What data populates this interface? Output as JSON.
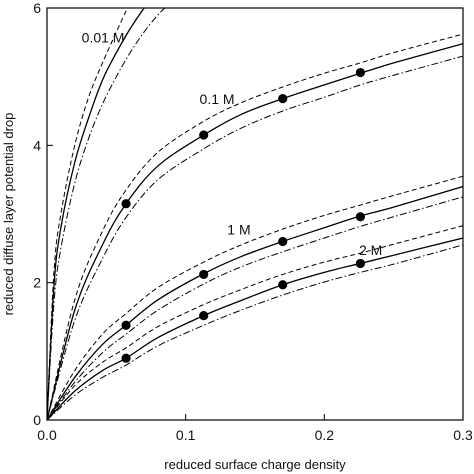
{
  "chart_data": {
    "type": "line",
    "title": "",
    "xlabel": "reduced surface charge density",
    "ylabel": "reduced diffuse layer potential drop",
    "xlim": [
      0.0,
      0.3
    ],
    "ylim": [
      0,
      6
    ],
    "x_ticks": [
      "0.0",
      "0.1",
      "0.2",
      "0.3"
    ],
    "y_ticks": [
      "0",
      "2",
      "4",
      "6"
    ],
    "grid": false,
    "legend": "none",
    "curve_labels": [
      {
        "text": "0.01 M",
        "x": 0.025,
        "y": 5.5
      },
      {
        "text": "0.1 M",
        "x": 0.11,
        "y": 4.6
      },
      {
        "text": "1 M",
        "x": 0.13,
        "y": 2.7
      },
      {
        "text": "2 M",
        "x": 0.225,
        "y": 2.4
      }
    ],
    "groups": [
      {
        "label": "0.01 M",
        "solid": [
          [
            0,
            0
          ],
          [
            0.005,
            1.95
          ],
          [
            0.01,
            2.8
          ],
          [
            0.02,
            3.75
          ],
          [
            0.03,
            4.4
          ],
          [
            0.04,
            4.95
          ],
          [
            0.05,
            5.35
          ],
          [
            0.06,
            5.7
          ],
          [
            0.07,
            6.0
          ]
        ],
        "dashed": [
          [
            0,
            0
          ],
          [
            0.005,
            2.15
          ],
          [
            0.01,
            3.0
          ],
          [
            0.02,
            4.0
          ],
          [
            0.03,
            4.7
          ],
          [
            0.04,
            5.2
          ],
          [
            0.05,
            5.65
          ],
          [
            0.058,
            6.0
          ]
        ],
        "dashdot": [
          [
            0,
            0
          ],
          [
            0.005,
            1.7
          ],
          [
            0.01,
            2.5
          ],
          [
            0.02,
            3.45
          ],
          [
            0.03,
            4.1
          ],
          [
            0.04,
            4.6
          ],
          [
            0.05,
            5.0
          ],
          [
            0.06,
            5.35
          ],
          [
            0.07,
            5.65
          ],
          [
            0.08,
            5.9
          ],
          [
            0.085,
            6.0
          ]
        ],
        "points": []
      },
      {
        "label": "0.1 M",
        "solid": [
          [
            0,
            0
          ],
          [
            0.02,
            1.6
          ],
          [
            0.04,
            2.55
          ],
          [
            0.057,
            3.15
          ],
          [
            0.08,
            3.7
          ],
          [
            0.113,
            4.15
          ],
          [
            0.14,
            4.45
          ],
          [
            0.17,
            4.68
          ],
          [
            0.2,
            4.88
          ],
          [
            0.226,
            5.05
          ],
          [
            0.25,
            5.2
          ],
          [
            0.3,
            5.48
          ]
        ],
        "dashed": [
          [
            0,
            0
          ],
          [
            0.02,
            1.75
          ],
          [
            0.04,
            2.75
          ],
          [
            0.057,
            3.35
          ],
          [
            0.08,
            3.9
          ],
          [
            0.113,
            4.35
          ],
          [
            0.14,
            4.62
          ],
          [
            0.17,
            4.85
          ],
          [
            0.2,
            5.05
          ],
          [
            0.226,
            5.2
          ],
          [
            0.25,
            5.35
          ],
          [
            0.3,
            5.62
          ]
        ],
        "dashdot": [
          [
            0,
            0
          ],
          [
            0.02,
            1.45
          ],
          [
            0.04,
            2.35
          ],
          [
            0.057,
            2.95
          ],
          [
            0.08,
            3.5
          ],
          [
            0.113,
            3.95
          ],
          [
            0.14,
            4.25
          ],
          [
            0.17,
            4.5
          ],
          [
            0.2,
            4.7
          ],
          [
            0.226,
            4.88
          ],
          [
            0.25,
            5.02
          ],
          [
            0.3,
            5.3
          ]
        ],
        "points": [
          [
            0.057,
            3.15
          ],
          [
            0.113,
            4.15
          ],
          [
            0.17,
            4.68
          ],
          [
            0.226,
            5.06
          ]
        ]
      },
      {
        "label": "1 M",
        "solid": [
          [
            0,
            0
          ],
          [
            0.02,
            0.62
          ],
          [
            0.04,
            1.1
          ],
          [
            0.057,
            1.38
          ],
          [
            0.08,
            1.75
          ],
          [
            0.113,
            2.13
          ],
          [
            0.14,
            2.38
          ],
          [
            0.17,
            2.6
          ],
          [
            0.2,
            2.8
          ],
          [
            0.226,
            2.97
          ],
          [
            0.25,
            3.1
          ],
          [
            0.3,
            3.4
          ]
        ],
        "dashed": [
          [
            0,
            0
          ],
          [
            0.02,
            0.72
          ],
          [
            0.04,
            1.25
          ],
          [
            0.057,
            1.55
          ],
          [
            0.08,
            1.93
          ],
          [
            0.113,
            2.3
          ],
          [
            0.14,
            2.55
          ],
          [
            0.17,
            2.78
          ],
          [
            0.2,
            2.98
          ],
          [
            0.226,
            3.13
          ],
          [
            0.25,
            3.27
          ],
          [
            0.3,
            3.55
          ]
        ],
        "dashdot": [
          [
            0,
            0
          ],
          [
            0.02,
            0.55
          ],
          [
            0.04,
            0.98
          ],
          [
            0.057,
            1.25
          ],
          [
            0.08,
            1.6
          ],
          [
            0.113,
            1.98
          ],
          [
            0.14,
            2.23
          ],
          [
            0.17,
            2.45
          ],
          [
            0.2,
            2.65
          ],
          [
            0.226,
            2.82
          ],
          [
            0.25,
            2.96
          ],
          [
            0.3,
            3.25
          ]
        ],
        "points": [
          [
            0.057,
            1.38
          ],
          [
            0.113,
            2.12
          ],
          [
            0.17,
            2.6
          ],
          [
            0.226,
            2.96
          ]
        ]
      },
      {
        "label": "2 M",
        "solid": [
          [
            0,
            0
          ],
          [
            0.02,
            0.42
          ],
          [
            0.04,
            0.72
          ],
          [
            0.057,
            0.9
          ],
          [
            0.08,
            1.2
          ],
          [
            0.113,
            1.52
          ],
          [
            0.14,
            1.74
          ],
          [
            0.17,
            1.97
          ],
          [
            0.2,
            2.15
          ],
          [
            0.226,
            2.28
          ],
          [
            0.25,
            2.4
          ],
          [
            0.3,
            2.65
          ]
        ],
        "dashed": [
          [
            0,
            0
          ],
          [
            0.02,
            0.5
          ],
          [
            0.04,
            0.84
          ],
          [
            0.057,
            1.05
          ],
          [
            0.08,
            1.36
          ],
          [
            0.113,
            1.68
          ],
          [
            0.14,
            1.9
          ],
          [
            0.17,
            2.12
          ],
          [
            0.2,
            2.3
          ],
          [
            0.226,
            2.43
          ],
          [
            0.25,
            2.56
          ],
          [
            0.3,
            2.83
          ]
        ],
        "dashdot": [
          [
            0,
            0
          ],
          [
            0.02,
            0.36
          ],
          [
            0.04,
            0.62
          ],
          [
            0.057,
            0.8
          ],
          [
            0.08,
            1.08
          ],
          [
            0.113,
            1.38
          ],
          [
            0.14,
            1.6
          ],
          [
            0.17,
            1.82
          ],
          [
            0.2,
            2.01
          ],
          [
            0.226,
            2.15
          ],
          [
            0.25,
            2.27
          ],
          [
            0.3,
            2.55
          ]
        ],
        "points": [
          [
            0.057,
            0.9
          ],
          [
            0.113,
            1.52
          ],
          [
            0.17,
            1.97
          ],
          [
            0.226,
            2.28
          ]
        ]
      }
    ]
  }
}
